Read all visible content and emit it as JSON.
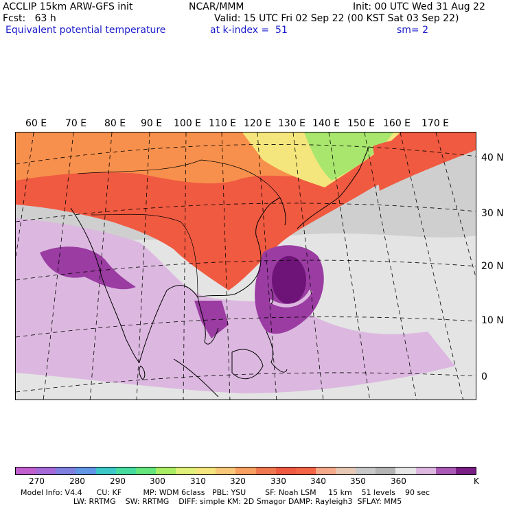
{
  "header": {
    "model_line": "ACCLIP 15km ARW-GFS init",
    "center_line": "NCAR/MMM",
    "init_line": "Init: 00 UTC Wed 31 Aug 22",
    "fcst_line": "Fcst:   63 h",
    "valid_line": "Valid: 15 UTC Fri 02 Sep 22 (00 KST Sat 03 Sep 22)",
    "field_line": "Equivalent potential temperature",
    "level_line": "at k-index =  51",
    "smooth_line": "sm= 2"
  },
  "map": {
    "lon_labels": [
      "60 E",
      "70 E",
      "80 E",
      "90 E",
      "100 E",
      "110 E",
      "120 E",
      "130 E",
      "140 E",
      "150 E",
      "160 E",
      "170 E"
    ],
    "lat_labels": [
      "40 N",
      "30 N",
      "20 N",
      "10 N",
      "0"
    ],
    "colors": {
      "warm_dark": "#f05a40",
      "warm_mid": "#f7904c",
      "warm_light": "#f8b877",
      "yellow": "#f4e67c",
      "green": "#a8e66e",
      "gray": "#bfbfbf",
      "light_gray": "#e6e6e6",
      "lavender": "#dcb8e0",
      "purple": "#9a3ca2",
      "deep_purple": "#6e1478"
    }
  },
  "colorbar": {
    "colors": [
      "#c25fcf",
      "#a56ad8",
      "#8080e0",
      "#6296e6",
      "#3cc8c8",
      "#46dca0",
      "#64e67c",
      "#aaee64",
      "#e0f078",
      "#f4e67c",
      "#f8c878",
      "#f7a060",
      "#f07850",
      "#f05a40",
      "#f56446",
      "#f4aa8a",
      "#e6c8b4",
      "#c8c8c8",
      "#b4b4b4",
      "#e6e6e6",
      "#dcb8e0",
      "#aa5ab4",
      "#7a1e86"
    ],
    "labels": [
      "270",
      "280",
      "290",
      "300",
      "310",
      "320",
      "330",
      "340",
      "350",
      "360",
      "K"
    ],
    "units": "K"
  },
  "model_info": {
    "line1": "Model Info: V4.4      CU: KF         MP: WDM 6class   PBL: YSU        SF: Noah LSM     15 km    51 levels    90 sec",
    "line2": "                      LW: RRTMG    SW: RRTMG    DIFF: simple KM: 2D Smagor DAMP: Rayleigh3  SFLAY: MM5"
  }
}
